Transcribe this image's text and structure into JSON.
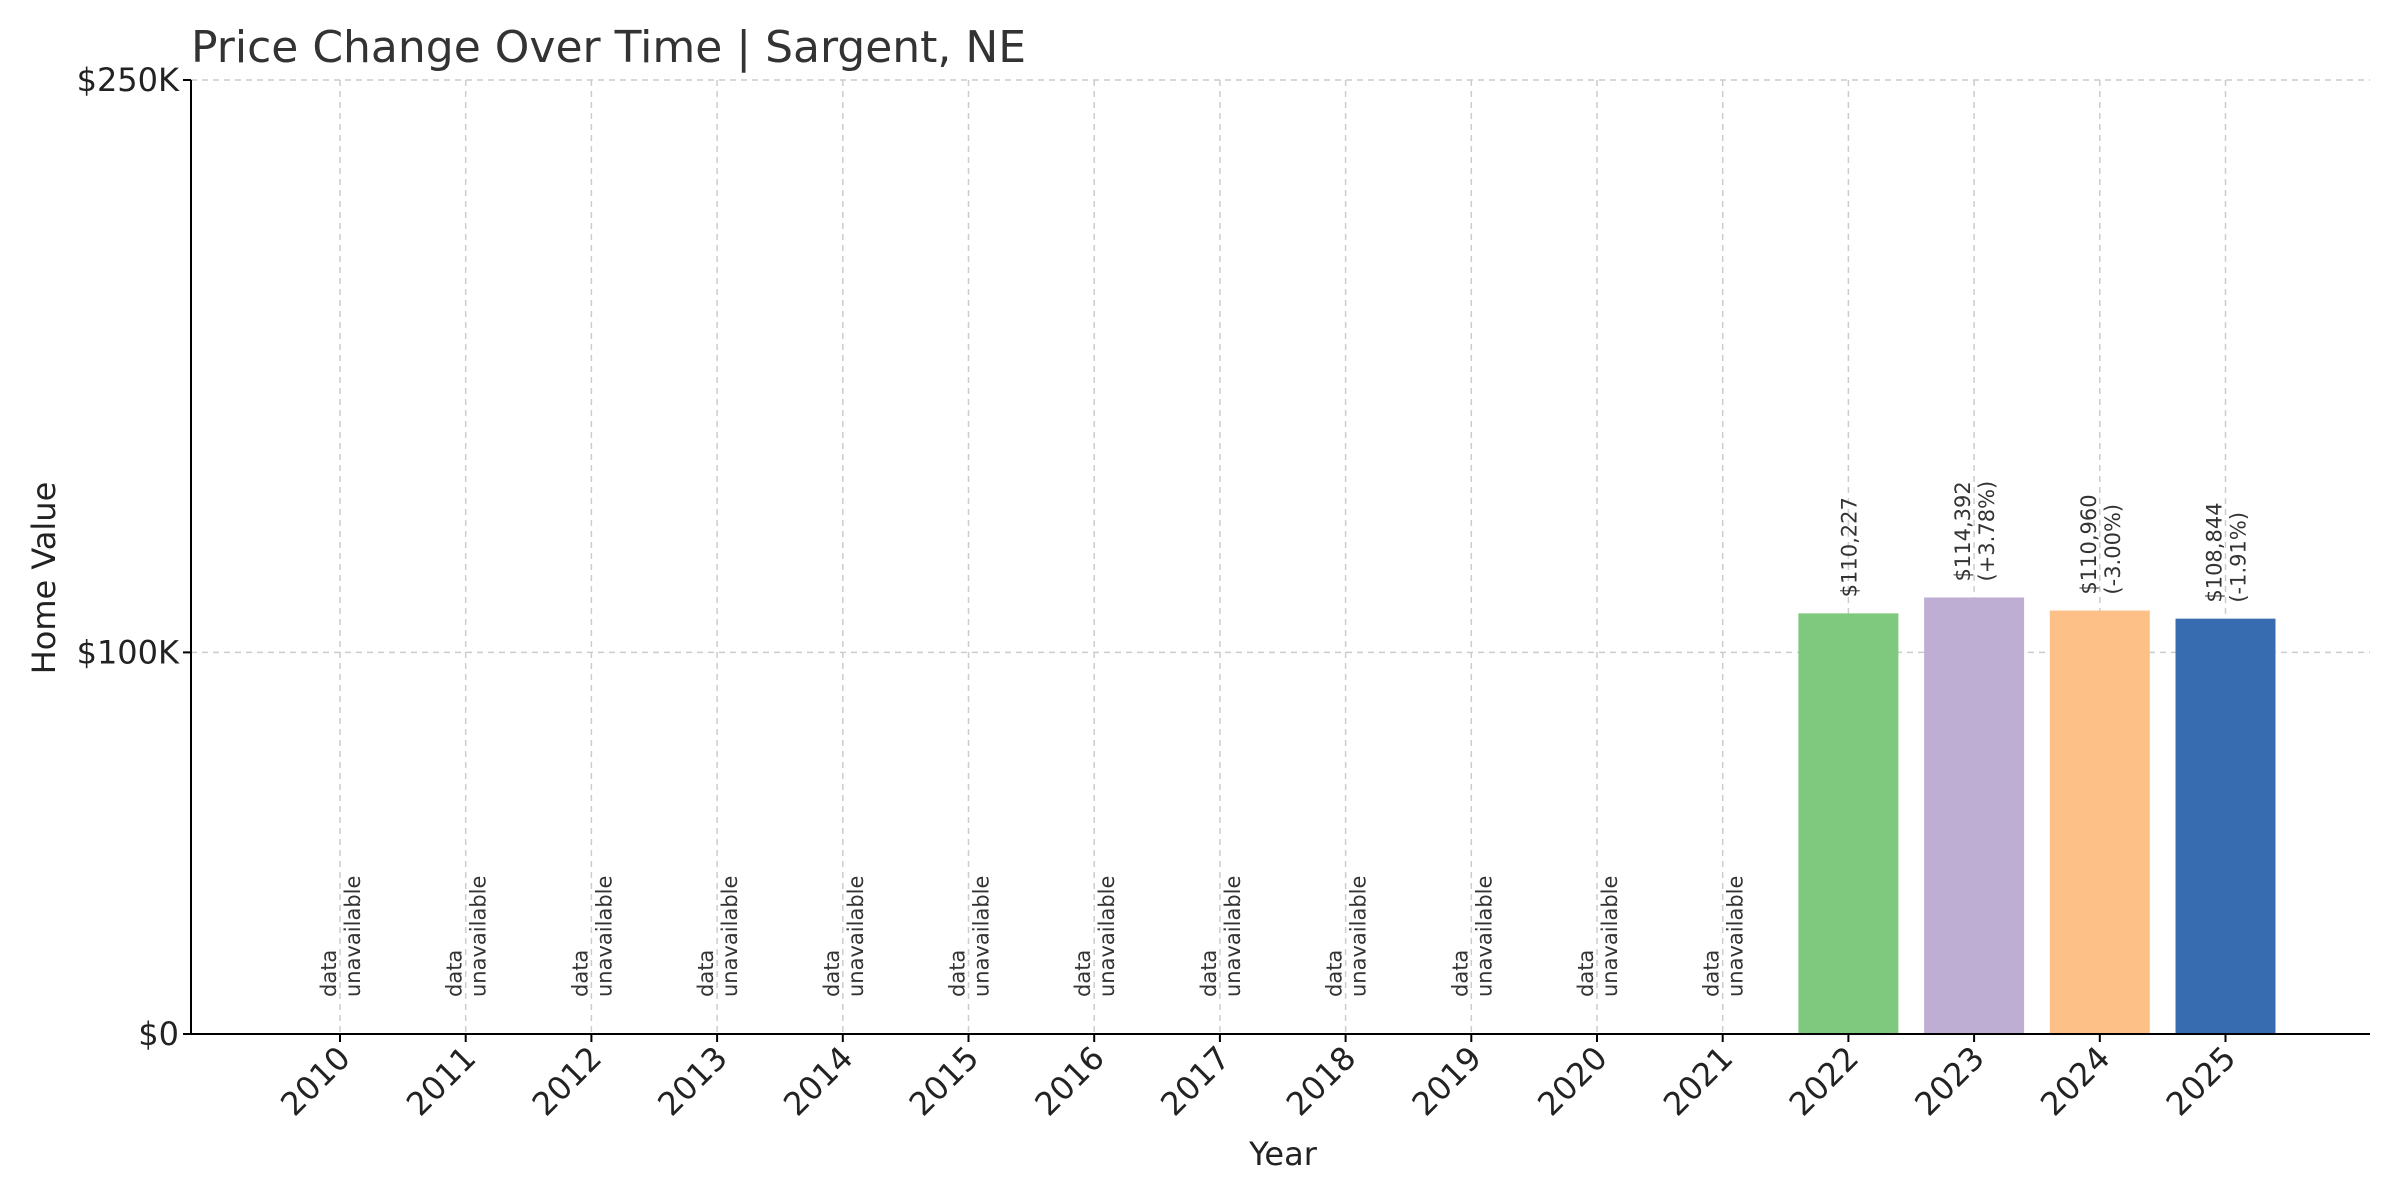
{
  "chart_data": {
    "type": "bar",
    "title": "Price Change Over Time | Sargent, NE",
    "xlabel": "Year",
    "ylabel": "Home Value",
    "ylim": [
      0,
      250000
    ],
    "y_ticks": [
      {
        "value": 0,
        "label": "$0"
      },
      {
        "value": 100000,
        "label": "$100K"
      },
      {
        "value": 250000,
        "label": "$250K"
      }
    ],
    "grid": true,
    "categories": [
      "2010",
      "2011",
      "2012",
      "2013",
      "2014",
      "2015",
      "2016",
      "2017",
      "2018",
      "2019",
      "2020",
      "2021",
      "2022",
      "2023",
      "2024",
      "2025"
    ],
    "values": [
      null,
      null,
      null,
      null,
      null,
      null,
      null,
      null,
      null,
      null,
      null,
      null,
      110227,
      114392,
      110960,
      108844
    ],
    "bar_labels": [
      [
        "data",
        "unavailable"
      ],
      [
        "data",
        "unavailable"
      ],
      [
        "data",
        "unavailable"
      ],
      [
        "data",
        "unavailable"
      ],
      [
        "data",
        "unavailable"
      ],
      [
        "data",
        "unavailable"
      ],
      [
        "data",
        "unavailable"
      ],
      [
        "data",
        "unavailable"
      ],
      [
        "data",
        "unavailable"
      ],
      [
        "data",
        "unavailable"
      ],
      [
        "data",
        "unavailable"
      ],
      [
        "data",
        "unavailable"
      ],
      [
        "$110,227"
      ],
      [
        "$114,392",
        "(+3.78%)"
      ],
      [
        "$110,960",
        "(-3.00%)"
      ],
      [
        "$108,844",
        "(-1.91%)"
      ]
    ],
    "bar_colors": [
      "#7fc97f",
      "#7fc97f",
      "#7fc97f",
      "#7fc97f",
      "#7fc97f",
      "#7fc97f",
      "#7fc97f",
      "#7fc97f",
      "#7fc97f",
      "#7fc97f",
      "#7fc97f",
      "#7fc97f",
      "#7fc97f",
      "#beaed4",
      "#fdc086",
      "#386cb0"
    ]
  }
}
